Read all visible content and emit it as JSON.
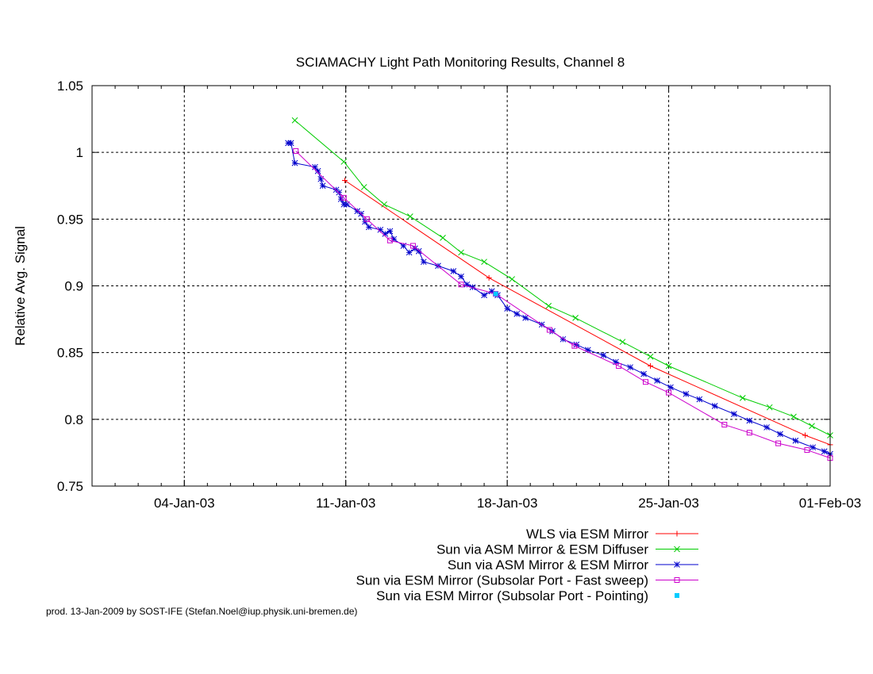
{
  "chart_data": {
    "type": "line",
    "title": "SCIAMACHY Light Path Monitoring Results, Channel 8",
    "xlabel": "",
    "ylabel": "Relative Avg. Signal",
    "x_type": "date",
    "xlim": [
      "2002-12-31",
      "2003-02-01"
    ],
    "ylim": [
      0.75,
      1.05
    ],
    "x_ticks": [
      {
        "date": "2003-01-04",
        "label": "04-Jan-03"
      },
      {
        "date": "2003-01-11",
        "label": "11-Jan-03"
      },
      {
        "date": "2003-01-18",
        "label": "18-Jan-03"
      },
      {
        "date": "2003-01-25",
        "label": "25-Jan-03"
      },
      {
        "date": "2003-02-01",
        "label": "01-Feb-03"
      }
    ],
    "y_ticks": [
      {
        "value": 0.75,
        "label": "0.75"
      },
      {
        "value": 0.8,
        "label": "0.8"
      },
      {
        "value": 0.85,
        "label": "0.85"
      },
      {
        "value": 0.9,
        "label": "0.9"
      },
      {
        "value": 0.95,
        "label": "0.95"
      },
      {
        "value": 1.0,
        "label": "1"
      },
      {
        "value": 1.05,
        "label": "1.05"
      }
    ],
    "grid": true,
    "legend_position": "bottom-right",
    "series": [
      {
        "name": "WLS via ESM Mirror",
        "color": "#ff0000",
        "marker": "plus",
        "points": [
          [
            "2003-01-10 23:00",
            0.979
          ],
          [
            "2003-01-17 05:00",
            0.906
          ],
          [
            "2003-01-24 05:00",
            0.84
          ],
          [
            "2003-01-30 22:00",
            0.788
          ],
          [
            "2003-02-01 00:00",
            0.781
          ]
        ]
      },
      {
        "name": "Sun via ASM Mirror & ESM Diffuser",
        "color": "#00cc00",
        "marker": "cross",
        "points": [
          [
            "2003-01-08 19:00",
            1.024
          ],
          [
            "2003-01-10 22:00",
            0.993
          ],
          [
            "2003-01-11 19:00",
            0.974
          ],
          [
            "2003-01-12 16:00",
            0.961
          ],
          [
            "2003-01-13 19:00",
            0.952
          ],
          [
            "2003-01-15 05:00",
            0.936
          ],
          [
            "2003-01-16 00:00",
            0.925
          ],
          [
            "2003-01-17 00:00",
            0.918
          ],
          [
            "2003-01-18 05:00",
            0.905
          ],
          [
            "2003-01-19 19:00",
            0.885
          ],
          [
            "2003-01-20 23:00",
            0.876
          ],
          [
            "2003-01-23 00:00",
            0.858
          ],
          [
            "2003-01-24 05:00",
            0.847
          ],
          [
            "2003-01-25 00:00",
            0.84
          ],
          [
            "2003-01-28 05:00",
            0.816
          ],
          [
            "2003-01-29 09:00",
            0.809
          ],
          [
            "2003-01-30 10:00",
            0.802
          ],
          [
            "2003-01-31 05:00",
            0.795
          ],
          [
            "2003-02-01 00:00",
            0.788
          ]
        ]
      },
      {
        "name": "Sun via ASM Mirror & ESM Mirror",
        "color": "#0000cc",
        "marker": "star",
        "points": [
          [
            "2003-01-08 12:00",
            1.007
          ],
          [
            "2003-01-08 15:00",
            1.007
          ],
          [
            "2003-01-08 19:00",
            0.992
          ],
          [
            "2003-01-09 16:00",
            0.989
          ],
          [
            "2003-01-09 19:00",
            0.986
          ],
          [
            "2003-01-09 22:00",
            0.98
          ],
          [
            "2003-01-10 00:00",
            0.975
          ],
          [
            "2003-01-10 14:00",
            0.972
          ],
          [
            "2003-01-10 17:00",
            0.97
          ],
          [
            "2003-01-10 19:00",
            0.965
          ],
          [
            "2003-01-10 22:00",
            0.961
          ],
          [
            "2003-01-11 01:00",
            0.961
          ],
          [
            "2003-01-11 12:00",
            0.956
          ],
          [
            "2003-01-11 16:00",
            0.954
          ],
          [
            "2003-01-11 20:00",
            0.948
          ],
          [
            "2003-01-12 00:00",
            0.944
          ],
          [
            "2003-01-12 12:00",
            0.942
          ],
          [
            "2003-01-12 17:00",
            0.939
          ],
          [
            "2003-01-12 22:00",
            0.941
          ],
          [
            "2003-01-13 02:00",
            0.935
          ],
          [
            "2003-01-13 12:00",
            0.93
          ],
          [
            "2003-01-13 18:00",
            0.925
          ],
          [
            "2003-01-14 00:00",
            0.928
          ],
          [
            "2003-01-14 04:00",
            0.926
          ],
          [
            "2003-01-14 09:00",
            0.918
          ],
          [
            "2003-01-15 00:00",
            0.915
          ],
          [
            "2003-01-15 16:00",
            0.911
          ],
          [
            "2003-01-16 00:00",
            0.907
          ],
          [
            "2003-01-16 06:00",
            0.901
          ],
          [
            "2003-01-16 12:00",
            0.899
          ],
          [
            "2003-01-17 00:00",
            0.893
          ],
          [
            "2003-01-17 08:00",
            0.896
          ],
          [
            "2003-01-17 14:00",
            0.893
          ],
          [
            "2003-01-18 00:00",
            0.883
          ],
          [
            "2003-01-18 10:00",
            0.879
          ],
          [
            "2003-01-18 19:00",
            0.876
          ],
          [
            "2003-01-19 12:00",
            0.871
          ],
          [
            "2003-01-19 23:00",
            0.866
          ],
          [
            "2003-01-20 10:00",
            0.86
          ],
          [
            "2003-01-21 00:00",
            0.856
          ],
          [
            "2003-01-21 12:00",
            0.852
          ],
          [
            "2003-01-22 04:00",
            0.848
          ],
          [
            "2003-01-22 17:00",
            0.843
          ],
          [
            "2003-01-23 08:00",
            0.839
          ],
          [
            "2003-01-23 22:00",
            0.834
          ],
          [
            "2003-01-24 12:00",
            0.829
          ],
          [
            "2003-01-25 02:00",
            0.824
          ],
          [
            "2003-01-25 18:00",
            0.819
          ],
          [
            "2003-01-26 08:00",
            0.815
          ],
          [
            "2003-01-27 00:00",
            0.81
          ],
          [
            "2003-01-27 20:00",
            0.804
          ],
          [
            "2003-01-28 12:00",
            0.799
          ],
          [
            "2003-01-29 06:00",
            0.794
          ],
          [
            "2003-01-29 20:00",
            0.789
          ],
          [
            "2003-01-30 12:00",
            0.784
          ],
          [
            "2003-01-31 06:00",
            0.779
          ],
          [
            "2003-01-31 18:00",
            0.776
          ],
          [
            "2003-02-01 00:00",
            0.774
          ]
        ]
      },
      {
        "name": "Sun via ESM Mirror (Subsolar Port - Fast sweep)",
        "color": "#cc00cc",
        "marker": "square",
        "points": [
          [
            "2003-01-08 20:00",
            1.001
          ],
          [
            "2003-01-10 22:00",
            0.966
          ],
          [
            "2003-01-11 22:00",
            0.95
          ],
          [
            "2003-01-12 22:00",
            0.934
          ],
          [
            "2003-01-13 22:00",
            0.93
          ],
          [
            "2003-01-16 00:00",
            0.901
          ],
          [
            "2003-01-17 12:00",
            0.894
          ],
          [
            "2003-01-19 20:00",
            0.867
          ],
          [
            "2003-01-20 22:00",
            0.855
          ],
          [
            "2003-01-22 20:00",
            0.84
          ],
          [
            "2003-01-24 00:00",
            0.828
          ],
          [
            "2003-01-25 00:00",
            0.82
          ],
          [
            "2003-01-27 10:00",
            0.796
          ],
          [
            "2003-01-28 12:00",
            0.79
          ],
          [
            "2003-01-29 18:00",
            0.782
          ],
          [
            "2003-01-31 00:00",
            0.777
          ],
          [
            "2003-02-01 00:00",
            0.771
          ]
        ]
      },
      {
        "name": "Sun via ESM Mirror (Subsolar Port - Pointing)",
        "color": "#00ccff",
        "marker": "filled-square",
        "points": [
          [
            "2003-01-17 12:00",
            0.894
          ]
        ]
      }
    ]
  },
  "footer": "prod. 13-Jan-2009 by SOST-IFE (Stefan.Noel@iup.physik.uni-bremen.de)"
}
